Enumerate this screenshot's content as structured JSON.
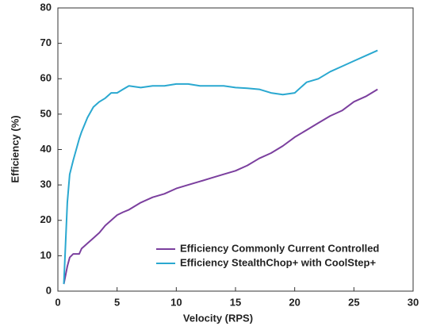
{
  "chart_data": {
    "type": "line",
    "xlabel": "Velocity (RPS)",
    "ylabel": "Efficiency (%)",
    "x": [
      0.5,
      0.8,
      1.0,
      1.3,
      1.8,
      2.0,
      2.5,
      3,
      3.5,
      4,
      4.5,
      5,
      5.5,
      6,
      7,
      8,
      9,
      10,
      11,
      12,
      13,
      14,
      15,
      16,
      17,
      18,
      19,
      20,
      21,
      22,
      23,
      24,
      25,
      26,
      27
    ],
    "series": [
      {
        "name": "Efficiency Commonly Current Controlled",
        "color": "#7b3f9e",
        "values": [
          2,
          7,
          9.5,
          10.5,
          10.5,
          12,
          13.5,
          15,
          16.5,
          18.5,
          20,
          21.5,
          22.3,
          23,
          25,
          26.5,
          27.5,
          29,
          30,
          31,
          32,
          33,
          34,
          35.5,
          37.5,
          39,
          41,
          43.5,
          45.5,
          47.5,
          49.5,
          51,
          53.5,
          55,
          57
        ]
      },
      {
        "name": "Efficiency StealthChop+ with CoolStep+",
        "color": "#2aa8d0",
        "values": [
          2,
          25,
          33,
          37,
          43,
          45,
          49,
          52,
          53.5,
          54.5,
          56,
          56,
          57,
          58,
          57.5,
          58,
          58,
          58.5,
          58.5,
          58,
          58,
          58,
          57.5,
          57.3,
          57,
          56,
          55.5,
          56,
          59,
          60,
          62,
          63.5,
          65,
          66.5,
          68
        ]
      }
    ],
    "xlim": [
      0,
      30
    ],
    "xticks": [
      0,
      5,
      10,
      15,
      20,
      25,
      30
    ],
    "ylim": [
      0,
      80
    ],
    "yticks": [
      0,
      10,
      20,
      30,
      40,
      50,
      60,
      70,
      80
    ],
    "legend": "lower right"
  }
}
